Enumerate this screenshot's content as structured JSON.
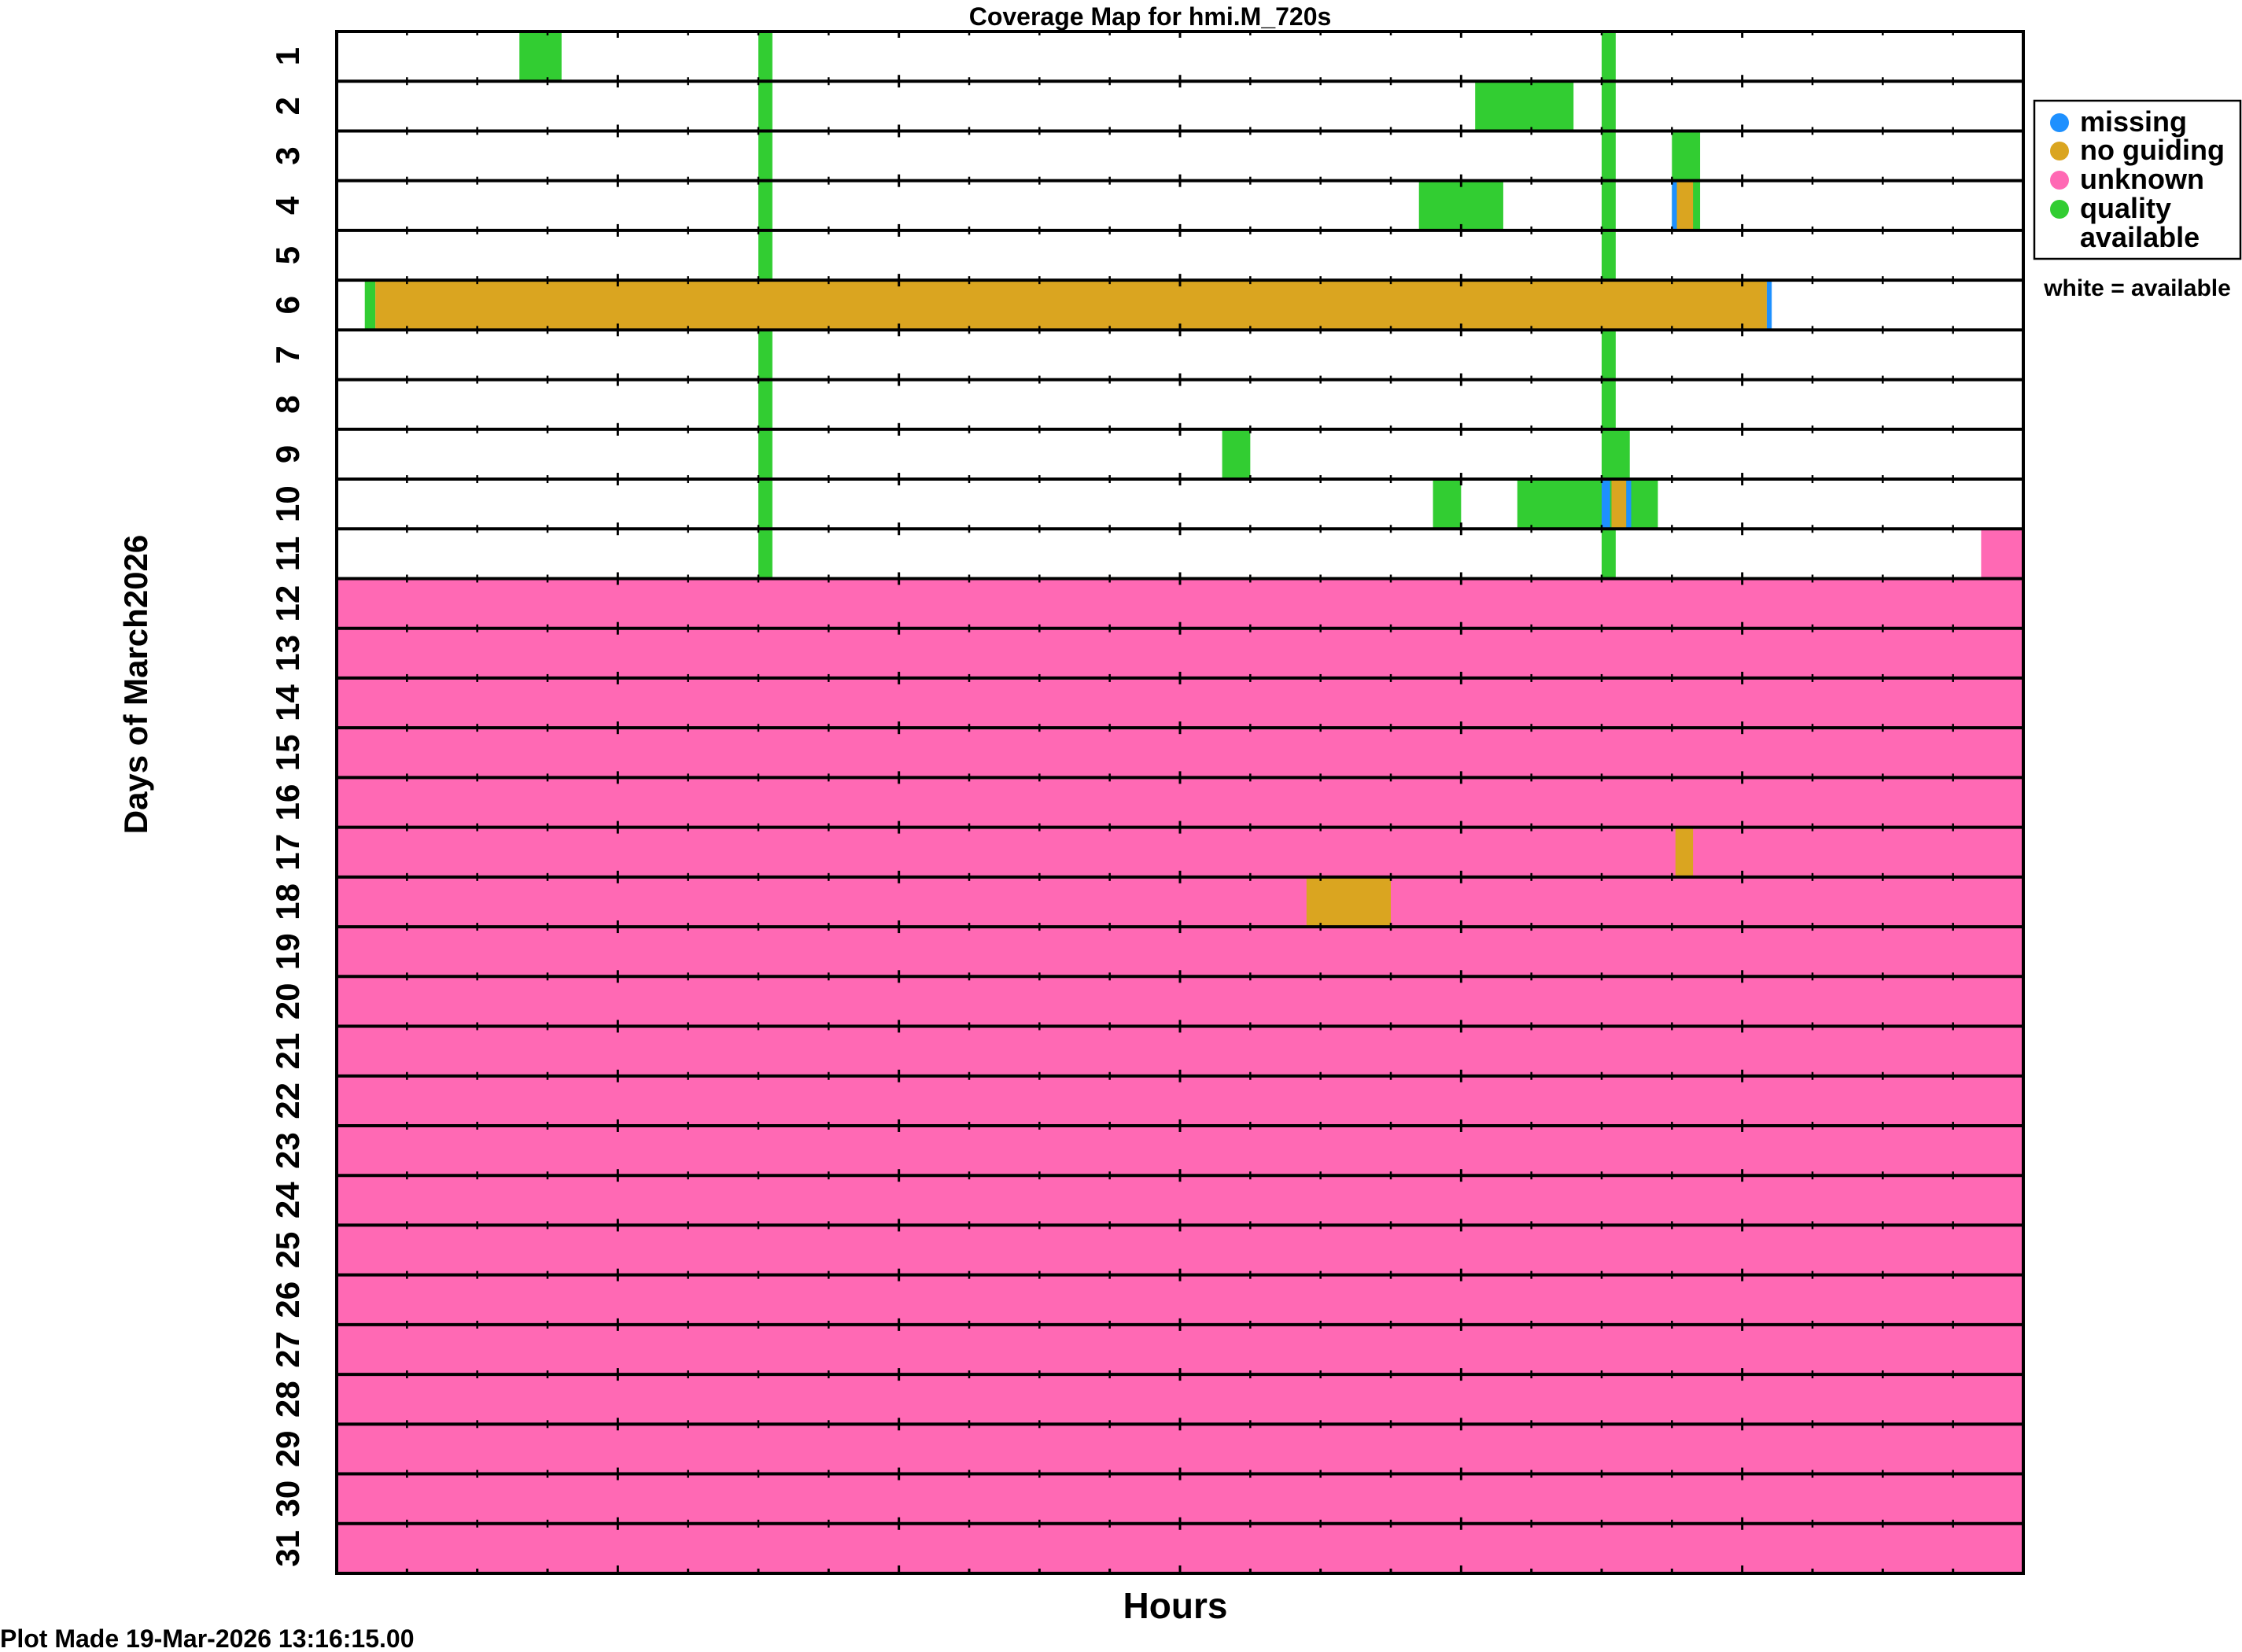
{
  "chart_data": {
    "type": "heatmap",
    "title": "Coverage Map for hmi.M_720s",
    "xlabel": "Hours",
    "ylabel": "Days of March2026",
    "footer": "Plot Made 19-Mar-2026 13:16:15.00",
    "x_range_hours": [
      0,
      24
    ],
    "days": [
      "1",
      "2",
      "3",
      "4",
      "5",
      "6",
      "7",
      "8",
      "9",
      "10",
      "11",
      "12",
      "13",
      "14",
      "15",
      "16",
      "17",
      "18",
      "19",
      "20",
      "21",
      "22",
      "23",
      "24",
      "25",
      "26",
      "27",
      "28",
      "29",
      "30",
      "31"
    ],
    "legend": {
      "placement": "right",
      "items": [
        {
          "key": "missing",
          "label": "missing",
          "color": "#1e90ff"
        },
        {
          "key": "no_guiding",
          "label": "no guiding",
          "color": "#daa520"
        },
        {
          "key": "unknown",
          "label": "unknown",
          "color": "#ff69b4"
        },
        {
          "key": "quality",
          "label": "quality",
          "label2": "available",
          "color": "#32cd32"
        }
      ],
      "note": "white = available"
    },
    "segments": [
      {
        "day": 1,
        "start": 2.6,
        "end": 3.2,
        "status": "quality"
      },
      {
        "day": 1,
        "start": 6.0,
        "end": 6.2,
        "status": "quality"
      },
      {
        "day": 1,
        "start": 18.0,
        "end": 18.2,
        "status": "quality"
      },
      {
        "day": 2,
        "start": 6.0,
        "end": 6.2,
        "status": "quality"
      },
      {
        "day": 2,
        "start": 16.2,
        "end": 17.6,
        "status": "quality"
      },
      {
        "day": 2,
        "start": 18.0,
        "end": 18.2,
        "status": "quality"
      },
      {
        "day": 3,
        "start": 6.0,
        "end": 6.2,
        "status": "quality"
      },
      {
        "day": 3,
        "start": 18.0,
        "end": 18.2,
        "status": "quality"
      },
      {
        "day": 3,
        "start": 19.0,
        "end": 19.4,
        "status": "quality"
      },
      {
        "day": 4,
        "start": 6.0,
        "end": 6.2,
        "status": "quality"
      },
      {
        "day": 4,
        "start": 15.4,
        "end": 16.6,
        "status": "quality"
      },
      {
        "day": 4,
        "start": 18.0,
        "end": 18.2,
        "status": "quality"
      },
      {
        "day": 4,
        "start": 19.0,
        "end": 19.4,
        "status": "quality"
      },
      {
        "day": 4,
        "start": 19.0,
        "end": 19.07,
        "status": "missing"
      },
      {
        "day": 4,
        "start": 19.07,
        "end": 19.3,
        "status": "no_guiding"
      },
      {
        "day": 5,
        "start": 6.0,
        "end": 6.2,
        "status": "quality"
      },
      {
        "day": 5,
        "start": 18.0,
        "end": 18.2,
        "status": "quality"
      },
      {
        "day": 6,
        "start": 0.4,
        "end": 0.55,
        "status": "quality"
      },
      {
        "day": 6,
        "start": 0.55,
        "end": 20.35,
        "status": "no_guiding"
      },
      {
        "day": 6,
        "start": 20.35,
        "end": 20.42,
        "status": "missing"
      },
      {
        "day": 7,
        "start": 6.0,
        "end": 6.2,
        "status": "quality"
      },
      {
        "day": 7,
        "start": 18.0,
        "end": 18.2,
        "status": "quality"
      },
      {
        "day": 8,
        "start": 6.0,
        "end": 6.2,
        "status": "quality"
      },
      {
        "day": 8,
        "start": 18.0,
        "end": 18.2,
        "status": "quality"
      },
      {
        "day": 9,
        "start": 6.0,
        "end": 6.2,
        "status": "quality"
      },
      {
        "day": 9,
        "start": 12.6,
        "end": 13.0,
        "status": "quality"
      },
      {
        "day": 9,
        "start": 18.0,
        "end": 18.4,
        "status": "quality"
      },
      {
        "day": 10,
        "start": 6.0,
        "end": 6.2,
        "status": "quality"
      },
      {
        "day": 10,
        "start": 15.6,
        "end": 16.0,
        "status": "quality"
      },
      {
        "day": 10,
        "start": 16.8,
        "end": 18.8,
        "status": "quality"
      },
      {
        "day": 10,
        "start": 18.0,
        "end": 18.12,
        "status": "missing"
      },
      {
        "day": 10,
        "start": 18.14,
        "end": 18.35,
        "status": "no_guiding"
      },
      {
        "day": 10,
        "start": 18.35,
        "end": 18.42,
        "status": "missing"
      },
      {
        "day": 11,
        "start": 6.0,
        "end": 6.2,
        "status": "quality"
      },
      {
        "day": 11,
        "start": 18.0,
        "end": 18.2,
        "status": "quality"
      },
      {
        "day": 11,
        "start": 23.4,
        "end": 24.0,
        "status": "unknown"
      },
      {
        "day": 12,
        "start": 0,
        "end": 24,
        "status": "unknown"
      },
      {
        "day": 13,
        "start": 0,
        "end": 24,
        "status": "unknown"
      },
      {
        "day": 14,
        "start": 0,
        "end": 24,
        "status": "unknown"
      },
      {
        "day": 15,
        "start": 0,
        "end": 24,
        "status": "unknown"
      },
      {
        "day": 16,
        "start": 0,
        "end": 24,
        "status": "unknown"
      },
      {
        "day": 17,
        "start": 0,
        "end": 24,
        "status": "unknown"
      },
      {
        "day": 17,
        "start": 19.05,
        "end": 19.3,
        "status": "no_guiding"
      },
      {
        "day": 18,
        "start": 0,
        "end": 24,
        "status": "unknown"
      },
      {
        "day": 18,
        "start": 13.8,
        "end": 15.0,
        "status": "no_guiding"
      },
      {
        "day": 19,
        "start": 0,
        "end": 24,
        "status": "unknown"
      },
      {
        "day": 20,
        "start": 0,
        "end": 24,
        "status": "unknown"
      },
      {
        "day": 21,
        "start": 0,
        "end": 24,
        "status": "unknown"
      },
      {
        "day": 22,
        "start": 0,
        "end": 24,
        "status": "unknown"
      },
      {
        "day": 23,
        "start": 0,
        "end": 24,
        "status": "unknown"
      },
      {
        "day": 24,
        "start": 0,
        "end": 24,
        "status": "unknown"
      },
      {
        "day": 25,
        "start": 0,
        "end": 24,
        "status": "unknown"
      },
      {
        "day": 26,
        "start": 0,
        "end": 24,
        "status": "unknown"
      },
      {
        "day": 27,
        "start": 0,
        "end": 24,
        "status": "unknown"
      },
      {
        "day": 28,
        "start": 0,
        "end": 24,
        "status": "unknown"
      },
      {
        "day": 29,
        "start": 0,
        "end": 24,
        "status": "unknown"
      },
      {
        "day": 30,
        "start": 0,
        "end": 24,
        "status": "unknown"
      },
      {
        "day": 31,
        "start": 0,
        "end": 24,
        "status": "unknown"
      }
    ]
  }
}
